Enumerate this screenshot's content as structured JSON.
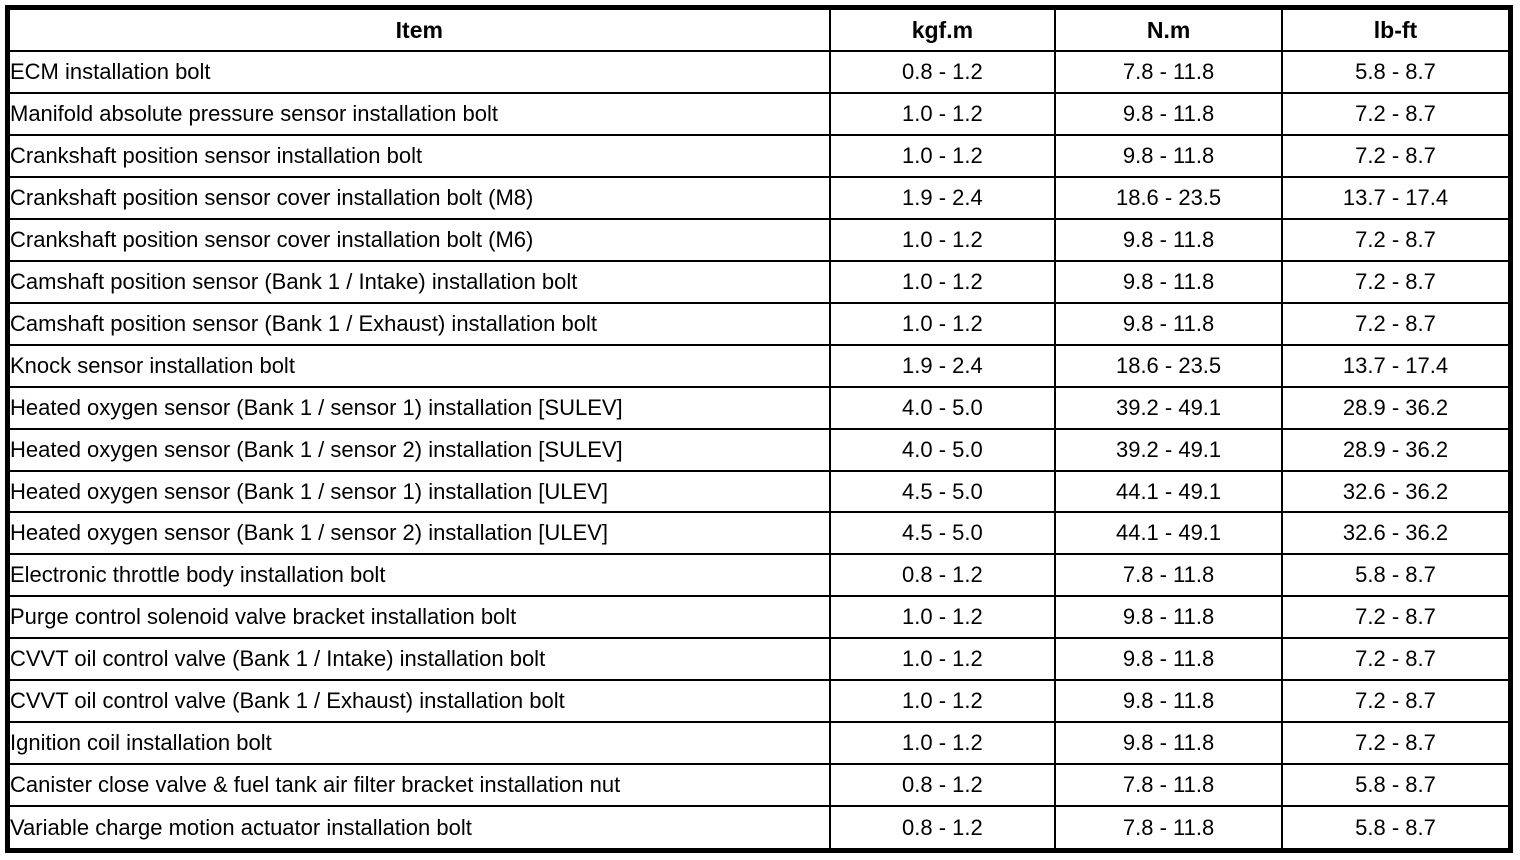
{
  "table": {
    "columns": [
      "Item",
      "kgf.m",
      "N.m",
      "lb-ft"
    ],
    "rows": [
      {
        "item": "ECM installation bolt",
        "kgf_m": "0.8 - 1.2",
        "n_m": "7.8 - 11.8",
        "lb_ft": "5.8 - 8.7"
      },
      {
        "item": "Manifold absolute pressure sensor installation bolt",
        "kgf_m": "1.0 - 1.2",
        "n_m": "9.8 - 11.8",
        "lb_ft": "7.2 - 8.7"
      },
      {
        "item": "Crankshaft position sensor installation bolt",
        "kgf_m": "1.0 - 1.2",
        "n_m": "9.8 - 11.8",
        "lb_ft": "7.2 - 8.7"
      },
      {
        "item": "Crankshaft position sensor cover installation bolt (M8)",
        "kgf_m": "1.9 - 2.4",
        "n_m": "18.6 - 23.5",
        "lb_ft": "13.7 - 17.4"
      },
      {
        "item": "Crankshaft position sensor cover installation bolt (M6)",
        "kgf_m": "1.0 - 1.2",
        "n_m": "9.8 - 11.8",
        "lb_ft": "7.2 - 8.7"
      },
      {
        "item": "Camshaft position sensor (Bank 1 / Intake) installation bolt",
        "kgf_m": "1.0 - 1.2",
        "n_m": "9.8 - 11.8",
        "lb_ft": "7.2 - 8.7"
      },
      {
        "item": "Camshaft position sensor (Bank 1 / Exhaust) installation bolt",
        "kgf_m": "1.0 - 1.2",
        "n_m": "9.8 - 11.8",
        "lb_ft": "7.2 - 8.7"
      },
      {
        "item": "Knock sensor installation bolt",
        "kgf_m": "1.9 - 2.4",
        "n_m": "18.6 - 23.5",
        "lb_ft": "13.7 - 17.4"
      },
      {
        "item": "Heated oxygen sensor (Bank 1 / sensor 1) installation [SULEV]",
        "kgf_m": "4.0 - 5.0",
        "n_m": "39.2 - 49.1",
        "lb_ft": "28.9 - 36.2"
      },
      {
        "item": "Heated oxygen sensor (Bank 1 / sensor 2) installation [SULEV]",
        "kgf_m": "4.0 - 5.0",
        "n_m": "39.2 - 49.1",
        "lb_ft": "28.9 - 36.2"
      },
      {
        "item": "Heated oxygen sensor (Bank 1 / sensor 1) installation [ULEV]",
        "kgf_m": "4.5 - 5.0",
        "n_m": "44.1 - 49.1",
        "lb_ft": "32.6 - 36.2"
      },
      {
        "item": "Heated oxygen sensor (Bank 1 / sensor 2) installation [ULEV]",
        "kgf_m": "4.5 - 5.0",
        "n_m": "44.1 - 49.1",
        "lb_ft": "32.6 - 36.2"
      },
      {
        "item": "Electronic throttle body installation bolt",
        "kgf_m": "0.8 - 1.2",
        "n_m": "7.8 - 11.8",
        "lb_ft": "5.8 - 8.7"
      },
      {
        "item": "Purge control solenoid valve bracket installation bolt",
        "kgf_m": "1.0 - 1.2",
        "n_m": "9.8 - 11.8",
        "lb_ft": "7.2 - 8.7"
      },
      {
        "item": "CVVT oil control valve (Bank 1 / Intake) installation bolt",
        "kgf_m": "1.0 - 1.2",
        "n_m": "9.8 - 11.8",
        "lb_ft": "7.2 - 8.7"
      },
      {
        "item": "CVVT oil control valve (Bank 1 / Exhaust) installation bolt",
        "kgf_m": "1.0 - 1.2",
        "n_m": "9.8 - 11.8",
        "lb_ft": "7.2 - 8.7"
      },
      {
        "item": "Ignition coil installation bolt",
        "kgf_m": "1.0 - 1.2",
        "n_m": "9.8 - 11.8",
        "lb_ft": "7.2 - 8.7"
      },
      {
        "item": "Canister close valve & fuel tank air filter bracket installation nut",
        "kgf_m": "0.8 - 1.2",
        "n_m": "7.8 - 11.8",
        "lb_ft": "5.8 - 8.7"
      },
      {
        "item": "Variable charge motion actuator installation bolt",
        "kgf_m": "0.8 - 1.2",
        "n_m": "7.8 - 11.8",
        "lb_ft": "5.8 - 8.7"
      }
    ]
  }
}
